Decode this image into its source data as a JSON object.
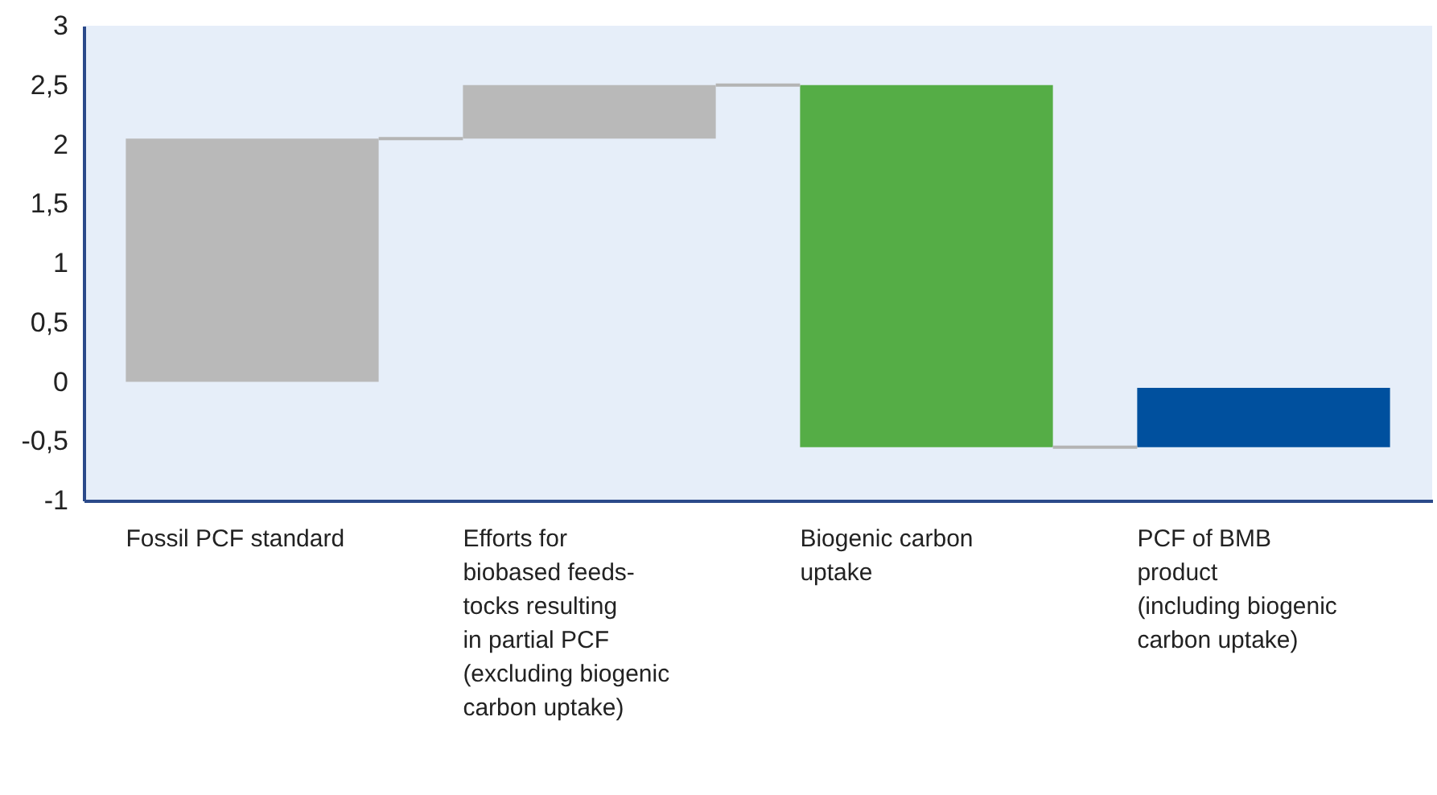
{
  "chart_data": {
    "type": "bar",
    "categories": [
      "Fossil PCF standard",
      "Efforts for\nbiobased feeds-\ntocks resulting\nin partial PCF\n(excluding biogenic\ncarbon uptake)",
      "Biogenic carbon\nuptake",
      "PCF of BMB\nproduct\n(including biogenic\ncarbon uptake)"
    ],
    "values": [
      2.05,
      0.45,
      3.05,
      0.5
    ],
    "base": [
      0,
      2.05,
      -0.55,
      -0.55
    ],
    "colors": [
      "#b9b9b9",
      "#b9b9b9",
      "#55ad46",
      "#00509e"
    ],
    "ylim": [
      -1,
      3
    ],
    "yticks": [
      -1,
      {
        "value": -0.5,
        "label": "-0,5"
      },
      0,
      {
        "value": 0.5,
        "label": "0,5"
      },
      1,
      {
        "value": 1.5,
        "label": "1,5"
      },
      2,
      {
        "value": 2.5,
        "label": "2,5"
      },
      3
    ],
    "grid": false
  }
}
